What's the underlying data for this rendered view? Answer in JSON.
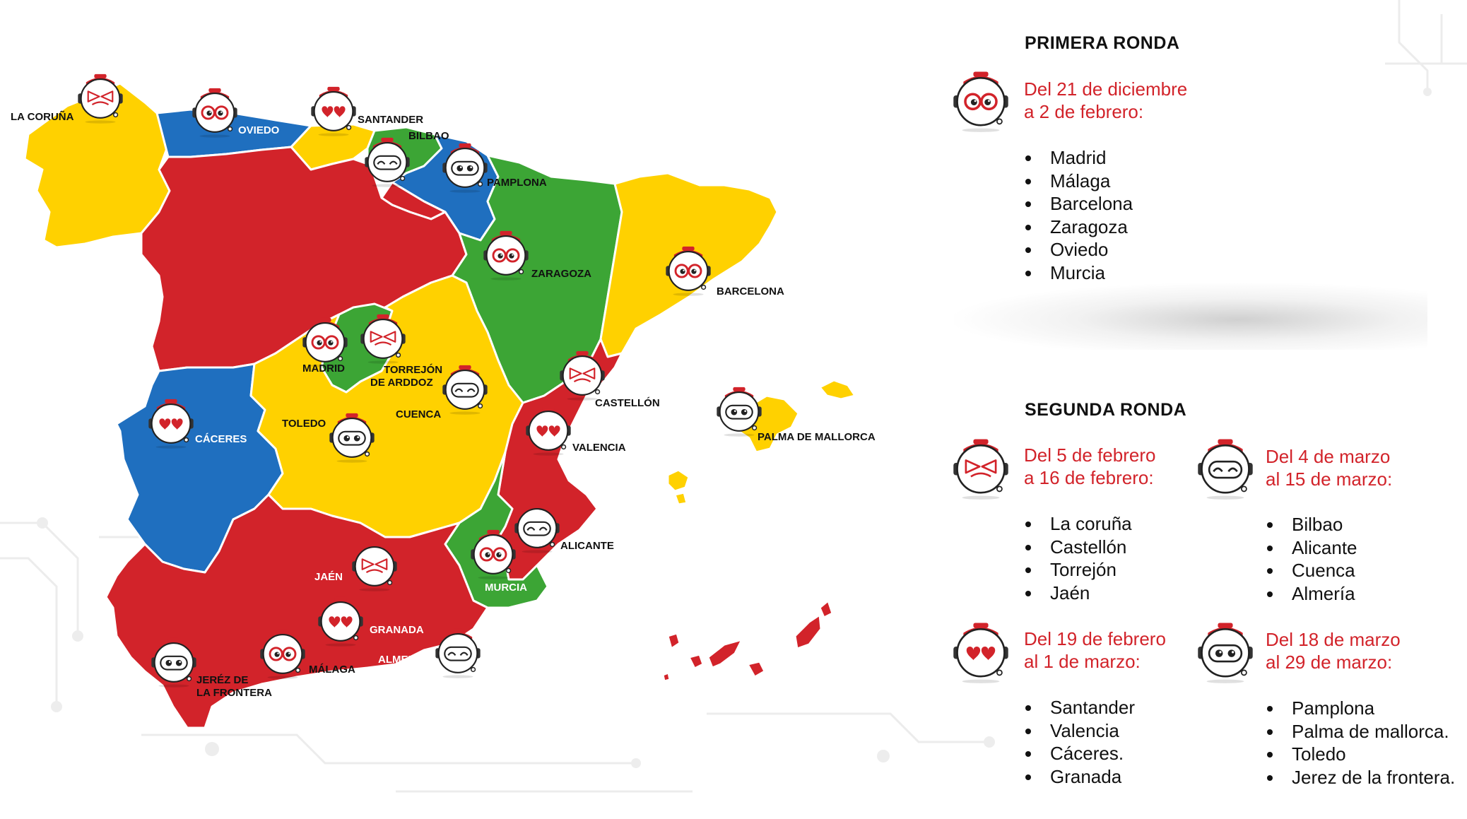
{
  "colors": {
    "red": "#d2232a",
    "yellow": "#ffd100",
    "blue": "#1f6fbf",
    "green": "#3ca535",
    "accent_text": "#d2232a"
  },
  "legend_icons": {
    "angry": "angry-face-icon",
    "glasses": "glasses-face-icon",
    "heart_eyes": "heart-eyes-face-icon",
    "happy": "happy-face-icon",
    "neutral": "neutral-face-icon"
  },
  "map": {
    "cities": [
      {
        "id": "la-coruna",
        "label": "LA CORUÑA",
        "icon": "angry-face-icon"
      },
      {
        "id": "oviedo",
        "label": "OVIEDO",
        "icon": "glasses-face-icon"
      },
      {
        "id": "santander",
        "label": "SANTANDER",
        "icon": "heart-eyes-face-icon"
      },
      {
        "id": "bilbao",
        "label": "BILBAO",
        "icon": "happy-face-icon"
      },
      {
        "id": "pamplona",
        "label": "PAMPLONA",
        "icon": "neutral-face-icon"
      },
      {
        "id": "zaragoza",
        "label": "ZARAGOZA",
        "icon": "glasses-face-icon"
      },
      {
        "id": "barcelona",
        "label": "BARCELONA",
        "icon": "glasses-face-icon"
      },
      {
        "id": "madrid",
        "label": "MADRID",
        "icon": "glasses-face-icon"
      },
      {
        "id": "torrejon",
        "label": "TORREJÓN\nDE ARDDOZ",
        "label_line1": "TORREJÓN",
        "label_line2": "DE ARDDOZ",
        "icon": "angry-face-icon"
      },
      {
        "id": "castellon",
        "label": "CASTELLÓN",
        "icon": "angry-face-icon"
      },
      {
        "id": "cuenca",
        "label": "CUENCA",
        "icon": "happy-face-icon"
      },
      {
        "id": "palma",
        "label": "PALMA DE MALLORCA",
        "icon": "neutral-face-icon"
      },
      {
        "id": "caceres",
        "label": "CÁCERES",
        "icon": "heart-eyes-face-icon"
      },
      {
        "id": "toledo",
        "label": "TOLEDO",
        "icon": "neutral-face-icon"
      },
      {
        "id": "valencia",
        "label": "VALENCIA",
        "icon": "heart-eyes-face-icon"
      },
      {
        "id": "alicante",
        "label": "ALICANTE",
        "icon": "happy-face-icon"
      },
      {
        "id": "murcia",
        "label": "MURCIA",
        "icon": "glasses-face-icon"
      },
      {
        "id": "jaen",
        "label": "JAÉN",
        "icon": "angry-face-icon"
      },
      {
        "id": "granada",
        "label": "GRANADA",
        "icon": "heart-eyes-face-icon"
      },
      {
        "id": "almeria",
        "label": "ALMERÍA",
        "icon": "happy-face-icon"
      },
      {
        "id": "malaga",
        "label": "MÁLAGA",
        "icon": "glasses-face-icon"
      },
      {
        "id": "jerez",
        "label_line1": "JERÉZ DE",
        "label_line2": "LA FRONTERA",
        "icon": "neutral-face-icon"
      }
    ]
  },
  "panel": {
    "primera": {
      "title": "PRIMERA RONDA",
      "groups": [
        {
          "icon": "glasses-face-icon",
          "date_line1": "Del 21 de diciembre",
          "date_line2": "a 2 de febrero:",
          "cities": [
            "Madrid",
            "Málaga",
            "Barcelona",
            "Zaragoza",
            "Oviedo",
            "Murcia"
          ]
        }
      ]
    },
    "segunda": {
      "title": "SEGUNDA RONDA",
      "groups": [
        {
          "icon": "angry-face-icon",
          "date_line1": "Del 5 de febrero",
          "date_line2": "a 16 de febrero:",
          "cities": [
            "La coruña",
            "Castellón",
            "Torrejón",
            "Jaén"
          ]
        },
        {
          "icon": "happy-face-icon",
          "date_line1": "Del 4 de marzo",
          "date_line2": "al 15 de marzo:",
          "cities": [
            "Bilbao",
            "Alicante",
            "Cuenca",
            "Almería"
          ]
        },
        {
          "icon": "heart-eyes-face-icon",
          "date_line1": "Del 19 de febrero",
          "date_line2": "al 1 de marzo:",
          "cities": [
            "Santander",
            "Valencia",
            "Cáceres.",
            "Granada"
          ]
        },
        {
          "icon": "neutral-face-icon",
          "date_line1": "Del 18 de marzo",
          "date_line2": "al 29 de marzo:",
          "cities": [
            "Pamplona",
            "Palma de mallorca.",
            "Toledo",
            "Jerez de la frontera."
          ]
        }
      ]
    }
  }
}
